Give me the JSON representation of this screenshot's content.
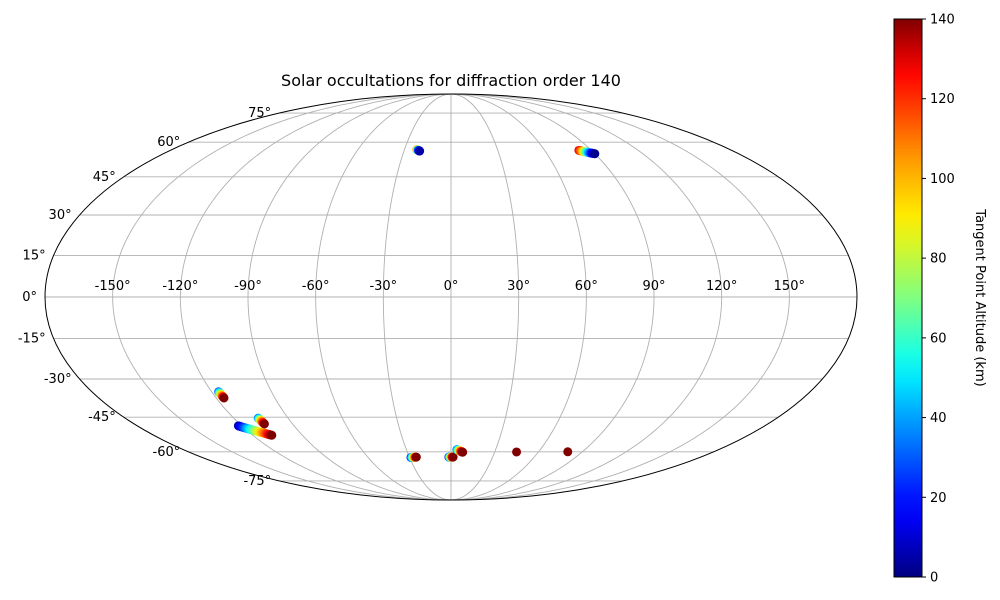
{
  "chart_data": {
    "type": "scatter",
    "projection": "mollweide",
    "title": "Solar occultations for diffraction order 140",
    "grid": true,
    "lon_ticks": [
      -150,
      -120,
      -90,
      -60,
      -30,
      0,
      30,
      60,
      90,
      120,
      150
    ],
    "lat_ticks": [
      -75,
      -60,
      -45,
      -30,
      -15,
      0,
      15,
      30,
      45,
      60,
      75
    ],
    "lat_range": [
      -75,
      75
    ],
    "lon_range": [
      -180,
      180
    ],
    "colorbar": {
      "label": "Tangent Point Altitude (km)",
      "colormap": "jet",
      "min": 0,
      "max": 140,
      "ticks": [
        0,
        20,
        40,
        60,
        80,
        100,
        120,
        140
      ]
    },
    "tracks": [
      {
        "lon": [
          -22,
          -21,
          -20
        ],
        "lat": [
          56.6,
          56.3,
          56.0
        ],
        "alt": [
          110,
          40,
          5
        ]
      },
      {
        "lon": [
          82,
          84,
          86,
          88,
          90
        ],
        "lat": [
          56.3,
          55.9,
          55.5,
          55.1,
          54.8
        ],
        "alt": [
          130,
          100,
          60,
          25,
          2
        ]
      },
      {
        "lon": [
          -116.5,
          -116.3,
          -116.0
        ],
        "lat": [
          -34.9,
          -36.1,
          -37.3
        ],
        "alt": [
          30,
          90,
          140
        ]
      },
      {
        "lon": [
          -106.5,
          -106.2,
          -106.0
        ],
        "lat": [
          -45.4,
          -46.6,
          -47.8
        ],
        "alt": [
          35,
          100,
          140
        ]
      },
      {
        "lon": [
          -122,
          -120,
          -118,
          -116,
          -114,
          -112,
          -110,
          -108.5
        ],
        "lat": [
          -48.6,
          -49.3,
          -49.9,
          -50.5,
          -51.1,
          -51.6,
          -52.2,
          -52.6
        ],
        "alt": [
          5,
          25,
          45,
          65,
          85,
          105,
          125,
          140
        ]
      },
      {
        "lon": [
          -29,
          -27,
          -25
        ],
        "lat": [
          -62.7,
          -62.6,
          -62.5
        ],
        "alt": [
          20,
          80,
          140
        ]
      },
      {
        "lon": [
          -1.5,
          0,
          1.5
        ],
        "lat": [
          -62.5,
          -62.5,
          -62.5
        ],
        "alt": [
          20,
          85,
          140
        ]
      },
      {
        "lon": [
          4,
          5,
          6,
          7,
          8
        ],
        "lat": [
          -59.0,
          -59.3,
          -59.6,
          -59.9,
          -60.2
        ],
        "alt": [
          30,
          60,
          90,
          120,
          140
        ]
      },
      {
        "lon": [
          45
        ],
        "lat": [
          -60.1
        ],
        "alt": [
          140
        ]
      },
      {
        "lon": [
          80
        ],
        "lat": [
          -60.0
        ],
        "alt": [
          140
        ]
      }
    ]
  }
}
